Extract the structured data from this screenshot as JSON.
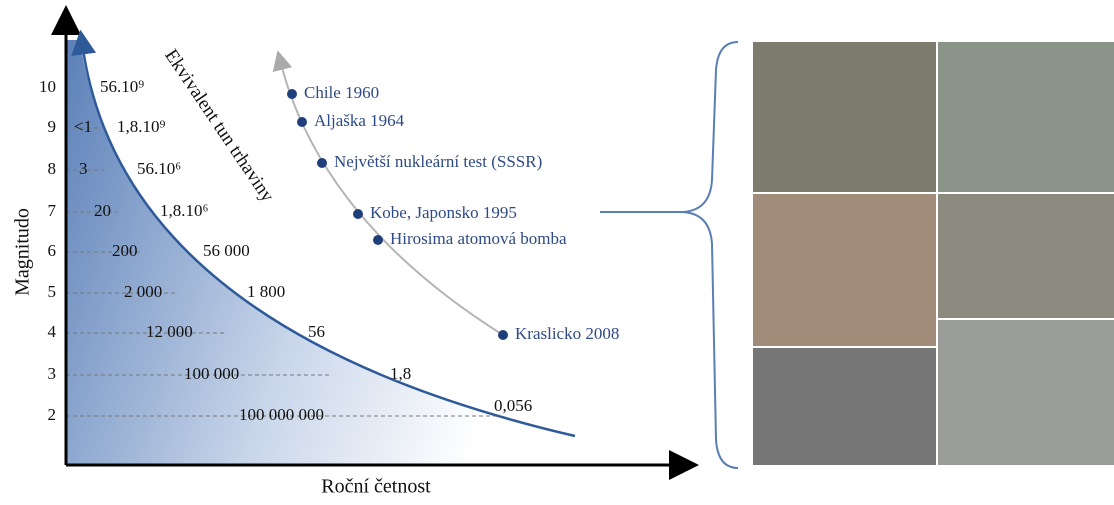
{
  "axes": {
    "y_label": "Magnitudo",
    "x_label": "Roční četnost",
    "y_ticks": [
      "10",
      "9",
      "8",
      "7",
      "6",
      "5",
      "4",
      "3",
      "2"
    ]
  },
  "curve_label": "Ekvivalent tun trhaviny",
  "frequencies": [
    "<1",
    "3",
    "20",
    "200",
    "2 000",
    "12 000",
    "100 000",
    "100 000 000"
  ],
  "energies": [
    "56.10⁹",
    "1,8.10⁹",
    "56.10⁶",
    "1,8.10⁶",
    "56 000",
    "1 800",
    "56",
    "1,8",
    "0,056"
  ],
  "events": [
    "Chile 1960",
    "Aljaška 1964",
    "Největší nukleární test (SSSR)",
    "Kobe, Japonsko 1995",
    "Hirosima atomová bomba",
    "Kraslicko 2008"
  ]
}
